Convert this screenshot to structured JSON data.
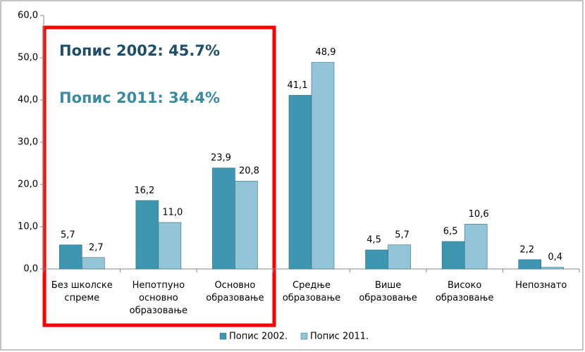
{
  "chart_data": {
    "type": "bar",
    "categories": [
      "Без школске\nспреме",
      "Непотпуно\nосновно\nобразовање",
      "Основно\nобразовање",
      "Средње\nобразовање",
      "Више\nобразовање",
      "Високо\nобразовање",
      "Непознато"
    ],
    "series": [
      {
        "name": "Попис 2002.",
        "color": "#3f96b0",
        "values": [
          5.7,
          16.2,
          23.9,
          41.1,
          4.5,
          6.5,
          2.2
        ],
        "value_labels": [
          "5,7",
          "16,2",
          "23,9",
          "41,1",
          "4,5",
          "6,5",
          "2,2"
        ]
      },
      {
        "name": "Попис 2011.",
        "color": "#93c4d8",
        "values": [
          2.7,
          11.0,
          20.8,
          48.9,
          5.7,
          10.6,
          0.4
        ],
        "value_labels": [
          "2,7",
          "11,0",
          "20,8",
          "48,9",
          "5,7",
          "10,6",
          "0,4"
        ]
      }
    ],
    "ylim": [
      0,
      60
    ],
    "yticks": [
      {
        "value": 0,
        "label": "0,0"
      },
      {
        "value": 10,
        "label": "10,0"
      },
      {
        "value": 20,
        "label": "20,0"
      },
      {
        "value": 30,
        "label": "30,0"
      },
      {
        "value": 40,
        "label": "40,0"
      },
      {
        "value": 50,
        "label": "50,0"
      },
      {
        "value": 60,
        "label": "60,0"
      }
    ],
    "legend": "bottom",
    "annotations": [
      "Попис 2002: 45.7%",
      "Попис 2011: 34.4%"
    ]
  }
}
